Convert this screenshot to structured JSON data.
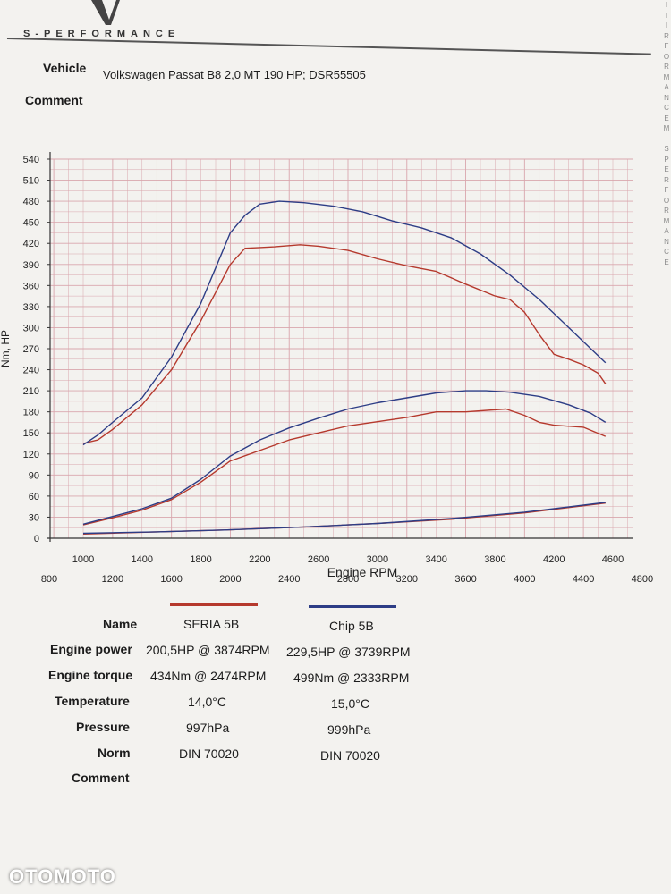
{
  "brand": "S-PERFORMANCE",
  "side_text": "I\nT\nI\nR\nF\nO\nR\nM\nA\nN\nC\nE\nM\n\nS\nP\nE\nR\nF\nO\nR\nM\nA\nN\nC\nE",
  "header": {
    "vehicle_label": "Vehicle",
    "vehicle_value": "Volkswagen Passat B8 2,0 MT 190 HP; DSR55505",
    "comment_label": "Comment"
  },
  "colors": {
    "seria": "#b5392d",
    "chip": "#2d3d86",
    "grid": "#d9a6ad",
    "axis": "#333333"
  },
  "chart_data": {
    "type": "line",
    "xlabel": "Engine RPM",
    "ylabel": "Nm, HP",
    "xlim": [
      800,
      4800
    ],
    "ylim": [
      0,
      540
    ],
    "y_ticks": [
      0,
      30,
      60,
      90,
      120,
      150,
      180,
      210,
      240,
      270,
      300,
      330,
      360,
      390,
      420,
      450,
      480,
      510,
      540
    ],
    "x_ticks_upper": [
      1000,
      1400,
      1800,
      2200,
      2600,
      3000,
      3400,
      3800,
      4200,
      4600
    ],
    "x_ticks_lower": [
      800,
      1200,
      1600,
      2000,
      2400,
      2800,
      3200,
      3600,
      4000,
      4400,
      4800
    ],
    "series": [
      {
        "name": "SERIA 5B torque",
        "color_key": "seria",
        "x": [
          1000,
          1100,
          1200,
          1400,
          1600,
          1800,
          1900,
          2000,
          2100,
          2200,
          2300,
          2474,
          2600,
          2800,
          3000,
          3200,
          3400,
          3600,
          3800,
          3900,
          4000,
          4100,
          4200,
          4300,
          4400,
          4500,
          4550
        ],
        "values": [
          135,
          140,
          155,
          190,
          240,
          310,
          350,
          390,
          413,
          414,
          415,
          418,
          416,
          410,
          398,
          388,
          380,
          362,
          345,
          340,
          322,
          290,
          262,
          255,
          247,
          235,
          220
        ]
      },
      {
        "name": "Chip 5B torque",
        "color_key": "chip",
        "x": [
          1000,
          1100,
          1200,
          1400,
          1600,
          1800,
          1900,
          2000,
          2100,
          2200,
          2333,
          2500,
          2700,
          2900,
          3100,
          3300,
          3500,
          3700,
          3900,
          4100,
          4300,
          4450,
          4550
        ],
        "values": [
          133,
          147,
          165,
          200,
          258,
          335,
          385,
          435,
          460,
          476,
          480,
          478,
          473,
          465,
          452,
          442,
          428,
          405,
          375,
          340,
          300,
          270,
          250
        ]
      },
      {
        "name": "SERIA 5B power",
        "color_key": "seria",
        "x": [
          1000,
          1200,
          1400,
          1600,
          1800,
          2000,
          2200,
          2400,
          2600,
          2800,
          3000,
          3200,
          3400,
          3600,
          3874,
          4000,
          4100,
          4200,
          4400,
          4550
        ],
        "values": [
          19,
          29,
          40,
          55,
          80,
          110,
          125,
          140,
          150,
          160,
          166,
          172,
          180,
          180,
          184,
          175,
          165,
          161,
          158,
          145
        ]
      },
      {
        "name": "Chip 5B power",
        "color_key": "chip",
        "x": [
          1000,
          1200,
          1400,
          1600,
          1800,
          2000,
          2200,
          2400,
          2600,
          2800,
          3000,
          3200,
          3400,
          3600,
          3739,
          3900,
          4100,
          4300,
          4450,
          4550
        ],
        "values": [
          20,
          31,
          42,
          57,
          84,
          117,
          140,
          157,
          171,
          184,
          193,
          200,
          207,
          210,
          210,
          208,
          202,
          190,
          178,
          165
        ]
      },
      {
        "name": "SERIA 5B loss",
        "color_key": "seria",
        "x": [
          1000,
          1500,
          2000,
          2500,
          3000,
          3500,
          4000,
          4550
        ],
        "values": [
          6,
          9,
          12,
          16,
          21,
          27,
          36,
          50
        ]
      },
      {
        "name": "Chip 5B loss",
        "color_key": "chip",
        "x": [
          1000,
          1500,
          2000,
          2500,
          3000,
          3500,
          4000,
          4550
        ],
        "values": [
          7,
          9,
          12,
          16,
          21,
          28,
          37,
          51
        ]
      }
    ]
  },
  "results": {
    "row_labels": [
      "Name",
      "Engine power",
      "Engine torque",
      "Temperature",
      "Pressure",
      "Norm",
      "Comment"
    ],
    "seria": {
      "name": "SERIA 5B",
      "power": "200,5HP @  3874RPM",
      "torque": "434Nm @ 2474RPM",
      "temperature": "14,0°C",
      "pressure": "997hPa",
      "norm": "DIN 70020"
    },
    "chip": {
      "name": "Chip 5B",
      "power": "229,5HP @  3739RPM",
      "torque": "499Nm @ 2333RPM",
      "temperature": "15,0°C",
      "pressure": "999hPa",
      "norm": "DIN 70020"
    }
  },
  "watermark": "OTOMOTO"
}
